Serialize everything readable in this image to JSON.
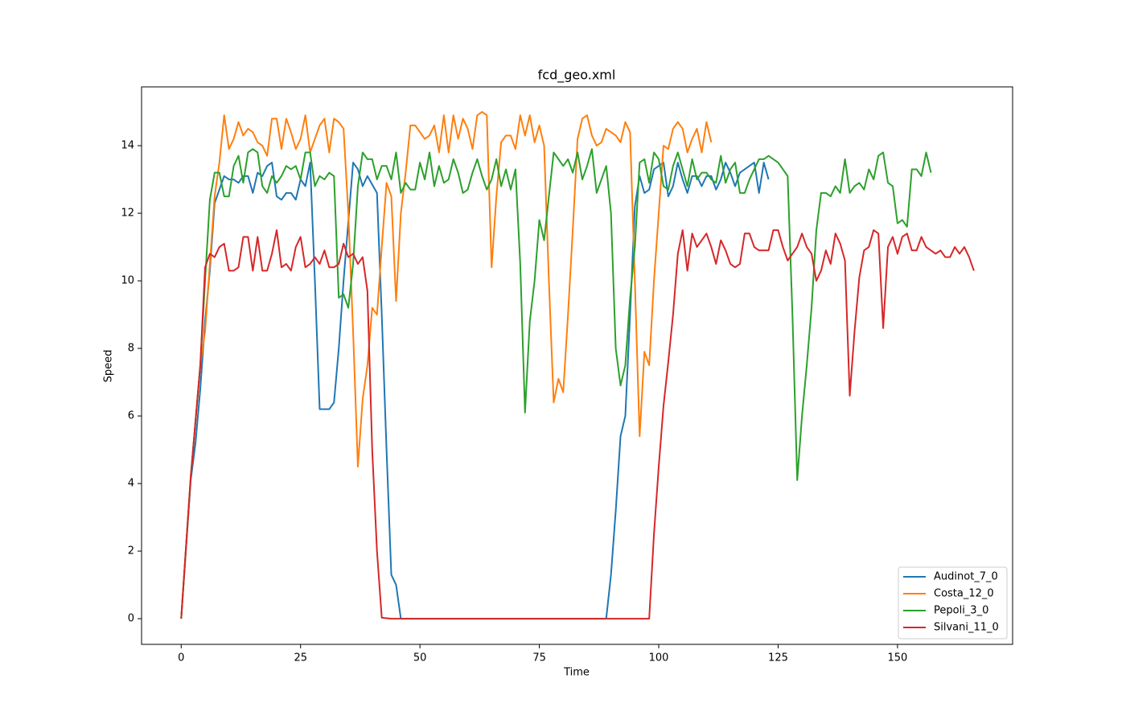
{
  "chart_data": {
    "type": "line",
    "title": "fcd_geo.xml",
    "xlabel": "Time",
    "ylabel": "Speed",
    "xlim": [
      -8.3,
      174.1
    ],
    "ylim": [
      -0.76,
      15.74
    ],
    "xticks": [
      0,
      25,
      50,
      75,
      100,
      125,
      150
    ],
    "yticks": [
      0,
      2,
      4,
      6,
      8,
      10,
      12,
      14
    ],
    "grid": false,
    "legend": "lower right",
    "series": [
      {
        "name": "Audinot_7_0",
        "color": "#1f77b4",
        "x": [
          0,
          2,
          3,
          4,
          5,
          6,
          7,
          9,
          10,
          11,
          12,
          13,
          14,
          15,
          16,
          17,
          18,
          19,
          20,
          21,
          22,
          23,
          24,
          25,
          26,
          27,
          28,
          29,
          31,
          32,
          33,
          34,
          36,
          37,
          38,
          39,
          41,
          42,
          43,
          44,
          45,
          46,
          89,
          90,
          91,
          92,
          93,
          94,
          95,
          96,
          97,
          98,
          99,
          101,
          102,
          103,
          104,
          105,
          106,
          107,
          108,
          109,
          110,
          111,
          112,
          113,
          114,
          115,
          116,
          117,
          118,
          120,
          121,
          122,
          123
        ],
        "values": [
          0,
          4.1,
          5.2,
          6.8,
          8.8,
          10.3,
          12.3,
          13.1,
          13.0,
          13.0,
          12.9,
          13.1,
          13.1,
          12.6,
          13.2,
          13.1,
          13.4,
          13.5,
          12.5,
          12.4,
          12.6,
          12.6,
          12.4,
          13.0,
          12.8,
          13.5,
          10.0,
          6.2,
          6.2,
          6.4,
          8.0,
          10.0,
          13.5,
          13.3,
          12.8,
          13.1,
          12.6,
          9.0,
          5.0,
          1.3,
          1.0,
          0,
          0,
          1.3,
          3.2,
          5.4,
          6.0,
          9.0,
          12.2,
          13.1,
          12.6,
          12.7,
          13.3,
          13.5,
          12.5,
          12.8,
          13.5,
          13.0,
          12.6,
          13.1,
          13.1,
          12.8,
          13.1,
          13.1,
          12.7,
          13.0,
          13.5,
          13.2,
          12.8,
          13.2,
          13.3,
          13.5,
          12.6,
          13.5,
          13.0
        ]
      },
      {
        "name": "Costa_12_0",
        "color": "#ff7f0e",
        "x": [
          0,
          2,
          4,
          5,
          6,
          7,
          8,
          9,
          10,
          11,
          12,
          13,
          14,
          15,
          16,
          17,
          18,
          19,
          20,
          21,
          22,
          23,
          24,
          25,
          26,
          27,
          28,
          29,
          30,
          31,
          32,
          33,
          34,
          35,
          36,
          37,
          38,
          39,
          40,
          41,
          42,
          43,
          44,
          45,
          46,
          47,
          48,
          49,
          50,
          51,
          52,
          53,
          54,
          55,
          56,
          57,
          58,
          59,
          60,
          61,
          62,
          63,
          64,
          65,
          66,
          67,
          68,
          69,
          70,
          71,
          72,
          73,
          74,
          75,
          76,
          77,
          78,
          79,
          80,
          81,
          82,
          83,
          84,
          85,
          86,
          87,
          88,
          89,
          90,
          91,
          92,
          93,
          94,
          95,
          96,
          97,
          98,
          99,
          100,
          101,
          102,
          103,
          104,
          105,
          106,
          107,
          108,
          109,
          110,
          111
        ],
        "values": [
          0,
          4.2,
          7.5,
          8.5,
          10.5,
          12.5,
          13.5,
          14.9,
          13.9,
          14.2,
          14.7,
          14.3,
          14.5,
          14.4,
          14.1,
          14.0,
          13.7,
          14.8,
          14.8,
          13.9,
          14.8,
          14.4,
          13.9,
          14.2,
          14.9,
          13.8,
          14.2,
          14.6,
          14.8,
          13.8,
          14.8,
          14.7,
          14.5,
          12.0,
          8.5,
          4.5,
          6.5,
          7.5,
          9.2,
          9.0,
          11.0,
          12.9,
          12.5,
          9.4,
          12.0,
          13.2,
          14.6,
          14.6,
          14.4,
          14.2,
          14.3,
          14.6,
          13.8,
          14.9,
          13.8,
          14.9,
          14.2,
          14.8,
          14.5,
          13.9,
          14.9,
          15.0,
          14.9,
          10.4,
          12.5,
          14.1,
          14.3,
          14.3,
          13.9,
          14.9,
          14.3,
          14.9,
          14.1,
          14.6,
          14.0,
          10.0,
          6.4,
          7.1,
          6.7,
          9.0,
          11.5,
          14.2,
          14.8,
          14.9,
          14.3,
          14.0,
          14.1,
          14.5,
          14.4,
          14.3,
          14.1,
          14.7,
          14.4,
          10.0,
          5.4,
          7.9,
          7.5,
          10.0,
          12.0,
          14.0,
          13.9,
          14.5,
          14.7,
          14.5,
          13.8,
          14.2,
          14.5,
          13.8,
          14.7,
          14.1
        ]
      },
      {
        "name": "Pepoli_3_0",
        "color": "#2ca02c",
        "x": [
          0,
          2,
          4,
          5,
          6,
          7,
          8,
          9,
          10,
          11,
          12,
          13,
          14,
          15,
          16,
          17,
          18,
          19,
          20,
          21,
          22,
          23,
          24,
          25,
          26,
          27,
          28,
          29,
          30,
          31,
          32,
          33,
          34,
          35,
          36,
          37,
          38,
          39,
          40,
          41,
          42,
          43,
          44,
          45,
          46,
          47,
          48,
          49,
          50,
          51,
          52,
          53,
          54,
          55,
          56,
          57,
          58,
          59,
          60,
          61,
          62,
          63,
          64,
          65,
          66,
          67,
          68,
          69,
          70,
          71,
          72,
          73,
          74,
          75,
          76,
          77,
          78,
          79,
          80,
          81,
          82,
          83,
          84,
          85,
          86,
          87,
          88,
          89,
          90,
          91,
          92,
          93,
          94,
          95,
          96,
          97,
          98,
          99,
          100,
          101,
          102,
          103,
          104,
          105,
          106,
          107,
          108,
          109,
          110,
          111,
          112,
          113,
          114,
          115,
          116,
          117,
          118,
          119,
          120,
          121,
          122,
          123,
          124,
          125,
          126,
          127,
          128,
          129,
          130,
          131,
          132,
          133,
          134,
          135,
          136,
          137,
          138,
          139,
          140,
          141,
          142,
          143,
          144,
          145,
          146,
          147,
          148,
          149,
          150,
          151,
          152,
          153,
          154,
          155,
          156,
          157
        ],
        "values": [
          0,
          4.2,
          7.5,
          10.0,
          12.4,
          13.2,
          13.2,
          12.5,
          12.5,
          13.4,
          13.7,
          12.9,
          13.8,
          13.9,
          13.8,
          12.8,
          12.6,
          13.1,
          12.9,
          13.1,
          13.4,
          13.3,
          13.4,
          13.0,
          13.8,
          13.8,
          12.8,
          13.1,
          13.0,
          13.2,
          13.1,
          9.5,
          9.6,
          9.2,
          10.5,
          12.8,
          13.8,
          13.6,
          13.6,
          13.0,
          13.4,
          13.4,
          13.0,
          13.8,
          12.6,
          12.9,
          12.7,
          12.7,
          13.5,
          13.0,
          13.8,
          12.8,
          13.4,
          12.9,
          13.0,
          13.6,
          13.2,
          12.6,
          12.7,
          13.2,
          13.6,
          13.1,
          12.7,
          13.0,
          13.6,
          12.8,
          13.3,
          12.7,
          13.3,
          10.5,
          6.1,
          8.8,
          10.0,
          11.8,
          11.2,
          12.5,
          13.8,
          13.6,
          13.4,
          13.6,
          13.2,
          13.8,
          13.0,
          13.4,
          13.9,
          12.6,
          13.0,
          13.4,
          12.0,
          8.0,
          6.9,
          7.5,
          9.5,
          11.0,
          13.5,
          13.6,
          12.9,
          13.8,
          13.6,
          12.8,
          12.7,
          13.4,
          13.8,
          13.3,
          12.8,
          13.6,
          13.0,
          13.2,
          13.2,
          13.0,
          12.9,
          13.7,
          12.9,
          13.3,
          13.5,
          12.6,
          12.6,
          13.0,
          13.3,
          13.6,
          13.6,
          13.7,
          13.6,
          13.5,
          13.3,
          13.1,
          9.0,
          4.1,
          6.0,
          7.5,
          9.2,
          11.5,
          12.6,
          12.6,
          12.5,
          12.8,
          12.6,
          13.6,
          12.6,
          12.8,
          12.9,
          12.7,
          13.3,
          13.0,
          13.7,
          13.8,
          12.9,
          12.8,
          11.7,
          11.8,
          11.6,
          13.3,
          13.3,
          13.1,
          13.8,
          13.2
        ]
      },
      {
        "name": "Silvani_11_0",
        "color": "#d62728",
        "x": [
          0,
          2,
          4,
          5,
          6,
          7,
          8,
          9,
          10,
          11,
          12,
          13,
          14,
          15,
          16,
          17,
          18,
          19,
          20,
          21,
          22,
          23,
          24,
          25,
          26,
          27,
          28,
          29,
          30,
          31,
          32,
          33,
          34,
          35,
          36,
          37,
          38,
          39,
          40,
          41,
          42,
          44,
          98,
          99,
          100,
          101,
          102,
          103,
          104,
          105,
          106,
          107,
          108,
          109,
          110,
          111,
          112,
          113,
          114,
          115,
          116,
          117,
          118,
          119,
          120,
          121,
          122,
          123,
          124,
          125,
          126,
          127,
          128,
          129,
          130,
          131,
          132,
          133,
          134,
          135,
          136,
          137,
          138,
          139,
          140,
          141,
          142,
          143,
          144,
          145,
          146,
          147,
          148,
          149,
          150,
          151,
          152,
          153,
          154,
          155,
          156,
          157,
          158,
          159,
          160,
          161,
          162,
          163,
          164,
          165,
          166
        ],
        "values": [
          0,
          4.2,
          7.5,
          10.4,
          10.8,
          10.7,
          11.0,
          11.1,
          10.3,
          10.3,
          10.4,
          11.3,
          11.3,
          10.3,
          11.3,
          10.3,
          10.3,
          10.8,
          11.5,
          10.4,
          10.5,
          10.3,
          11.0,
          11.3,
          10.4,
          10.5,
          10.7,
          10.5,
          10.9,
          10.4,
          10.4,
          10.5,
          11.1,
          10.7,
          10.8,
          10.5,
          10.7,
          9.7,
          5.0,
          2.0,
          0.03,
          0,
          0,
          2.5,
          4.5,
          6.3,
          7.6,
          9.0,
          10.8,
          11.5,
          10.3,
          11.4,
          11.0,
          11.2,
          11.4,
          11.0,
          10.5,
          11.2,
          10.9,
          10.5,
          10.4,
          10.5,
          11.4,
          11.4,
          11.0,
          10.9,
          10.9,
          10.9,
          11.5,
          11.5,
          11.0,
          10.6,
          10.8,
          11.0,
          11.4,
          11.0,
          10.8,
          10.0,
          10.3,
          10.9,
          10.5,
          11.4,
          11.1,
          10.6,
          6.6,
          8.5,
          10.1,
          10.9,
          11.0,
          11.5,
          11.4,
          8.6,
          11.0,
          11.3,
          10.8,
          11.3,
          11.4,
          10.9,
          10.9,
          11.3,
          11.0,
          10.9,
          10.8,
          10.9,
          10.7,
          10.7,
          11.0,
          10.8,
          11.0,
          10.7,
          10.3
        ]
      }
    ]
  }
}
